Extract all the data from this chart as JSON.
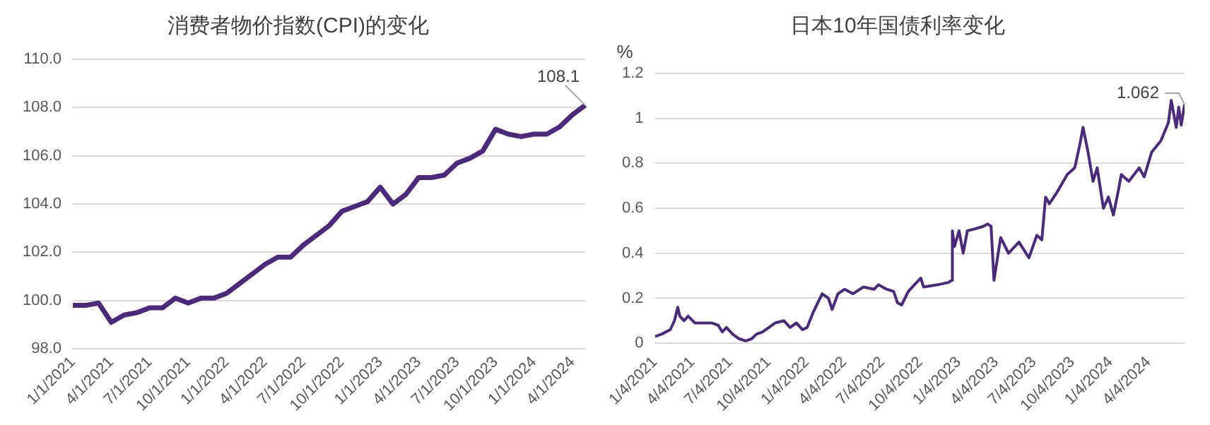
{
  "chart_data": [
    {
      "type": "line",
      "title": "消费者物价指数(CPI)的变化",
      "categories": [
        "1/1/2021",
        null,
        null,
        "4/1/2021",
        null,
        null,
        "7/1/2021",
        null,
        null,
        "10/1/2021",
        null,
        null,
        "1/1/2022",
        null,
        null,
        "4/1/2022",
        null,
        null,
        "7/1/2022",
        null,
        null,
        "10/1/2022",
        null,
        null,
        "1/1/2023",
        null,
        null,
        "4/1/2023",
        null,
        null,
        "7/1/2023",
        null,
        null,
        "10/1/2023",
        null,
        null,
        "1/1/2024",
        null,
        null,
        "4/1/2024",
        null
      ],
      "series": [
        {
          "color": "#4b2a7b",
          "values": [
            99.8,
            99.8,
            99.9,
            99.1,
            99.4,
            99.5,
            99.7,
            99.7,
            100.1,
            99.9,
            100.1,
            100.1,
            100.3,
            100.7,
            101.1,
            101.5,
            101.8,
            101.8,
            102.3,
            102.7,
            103.1,
            103.7,
            103.9,
            104.1,
            104.7,
            104.0,
            104.4,
            105.1,
            105.1,
            105.2,
            105.7,
            105.9,
            106.2,
            107.1,
            106.9,
            106.8,
            106.9,
            106.9,
            107.2,
            107.7,
            108.1
          ]
        }
      ],
      "ylim": [
        98,
        110
      ],
      "yticks": [
        {
          "value": 98,
          "label": "98.0"
        },
        {
          "value": 100,
          "label": "100.0"
        },
        {
          "value": 102,
          "label": "102.0"
        },
        {
          "value": 104,
          "label": "104.0"
        },
        {
          "value": 106,
          "label": "106.0"
        },
        {
          "value": 108,
          "label": "108.0"
        },
        {
          "value": 110,
          "label": "110.0"
        }
      ],
      "grid": "y",
      "legend": false,
      "marker": "none",
      "line_style": "solid",
      "annotations": [
        "108.1"
      ]
    },
    {
      "type": "line",
      "title": "日本10年国债利率变化",
      "ylabel": "%",
      "series": [
        {
          "color": "#4a2a7a",
          "x": [
            "2021-01-04",
            "2021-01-20",
            "2021-02-10",
            "2021-02-20",
            "2021-02-28",
            "2021-03-05",
            "2021-03-15",
            "2021-03-25",
            "2021-04-10",
            "2021-05-01",
            "2021-05-20",
            "2021-06-05",
            "2021-06-15",
            "2021-06-25",
            "2021-07-10",
            "2021-07-25",
            "2021-08-10",
            "2021-08-25",
            "2021-09-05",
            "2021-09-20",
            "2021-10-05",
            "2021-10-20",
            "2021-11-10",
            "2021-11-25",
            "2021-12-10",
            "2021-12-25",
            "2022-01-05",
            "2022-01-20",
            "2022-02-10",
            "2022-02-25",
            "2022-03-06",
            "2022-03-20",
            "2022-04-05",
            "2022-04-25",
            "2022-05-20",
            "2022-06-15",
            "2022-06-25",
            "2022-07-15",
            "2022-08-01",
            "2022-08-10",
            "2022-08-20",
            "2022-09-05",
            "2022-09-25",
            "2022-10-05",
            "2022-10-12",
            "2022-11-15",
            "2022-12-10",
            "2022-12-19",
            "2022-12-20",
            "2022-12-25",
            "2023-01-05",
            "2023-01-15",
            "2023-01-25",
            "2023-02-15",
            "2023-03-05",
            "2023-03-15",
            "2023-03-23",
            "2023-03-30",
            "2023-04-15",
            "2023-05-04",
            "2023-05-29",
            "2023-06-22",
            "2023-07-11",
            "2023-07-23",
            "2023-08-01",
            "2023-08-10",
            "2023-08-28",
            "2023-09-22",
            "2023-10-10",
            "2023-10-22",
            "2023-10-30",
            "2023-11-11",
            "2023-11-23",
            "2023-12-03",
            "2023-12-18",
            "2023-12-30",
            "2024-01-11",
            "2024-01-23",
            "2024-01-30",
            "2024-02-17",
            "2024-03-13",
            "2024-03-25",
            "2024-04-12",
            "2024-05-04",
            "2024-05-22",
            "2024-05-29",
            "2024-06-10",
            "2024-06-16",
            "2024-06-22",
            "2024-06-30"
          ],
          "values": [
            0.03,
            0.04,
            0.06,
            0.1,
            0.16,
            0.12,
            0.1,
            0.12,
            0.09,
            0.09,
            0.09,
            0.08,
            0.05,
            0.07,
            0.04,
            0.02,
            0.01,
            0.02,
            0.04,
            0.05,
            0.07,
            0.09,
            0.1,
            0.07,
            0.09,
            0.06,
            0.07,
            0.14,
            0.22,
            0.2,
            0.15,
            0.22,
            0.24,
            0.22,
            0.25,
            0.24,
            0.26,
            0.24,
            0.23,
            0.18,
            0.17,
            0.23,
            0.27,
            0.29,
            0.25,
            0.26,
            0.27,
            0.28,
            0.5,
            0.43,
            0.5,
            0.4,
            0.5,
            0.51,
            0.52,
            0.53,
            0.52,
            0.28,
            0.47,
            0.4,
            0.45,
            0.38,
            0.48,
            0.46,
            0.65,
            0.62,
            0.67,
            0.75,
            0.78,
            0.88,
            0.96,
            0.85,
            0.72,
            0.78,
            0.6,
            0.65,
            0.57,
            0.68,
            0.75,
            0.72,
            0.78,
            0.74,
            0.85,
            0.9,
            0.98,
            1.08,
            0.96,
            1.05,
            0.97,
            1.062
          ]
        }
      ],
      "xlim": [
        "2021-01-04",
        "2024-06-30"
      ],
      "xticks": [
        {
          "value": "2021-01-04",
          "label": "1/4/2021"
        },
        {
          "value": "2021-04-04",
          "label": "4/4/2021"
        },
        {
          "value": "2021-07-04",
          "label": "7/4/2021"
        },
        {
          "value": "2021-10-04",
          "label": "10/4/2021"
        },
        {
          "value": "2022-01-04",
          "label": "1/4/2022"
        },
        {
          "value": "2022-04-04",
          "label": "4/4/2022"
        },
        {
          "value": "2022-07-04",
          "label": "7/4/2022"
        },
        {
          "value": "2022-10-04",
          "label": "10/4/2022"
        },
        {
          "value": "2023-01-04",
          "label": "1/4/2023"
        },
        {
          "value": "2023-04-04",
          "label": "4/4/2023"
        },
        {
          "value": "2023-07-04",
          "label": "7/4/2023"
        },
        {
          "value": "2023-10-04",
          "label": "10/4/2023"
        },
        {
          "value": "2024-01-04",
          "label": "1/4/2024"
        },
        {
          "value": "2024-04-04",
          "label": "4/4/2024"
        }
      ],
      "ylim": [
        0,
        1.2
      ],
      "yticks": [
        0,
        0.2,
        0.4,
        0.6,
        0.8,
        1,
        1.2
      ],
      "grid": "y",
      "legend": false,
      "marker": "none",
      "line_style": "solid",
      "annotations": [
        {
          "text": "1.062",
          "x": "2024-06-30",
          "y": 1.062
        }
      ]
    }
  ]
}
